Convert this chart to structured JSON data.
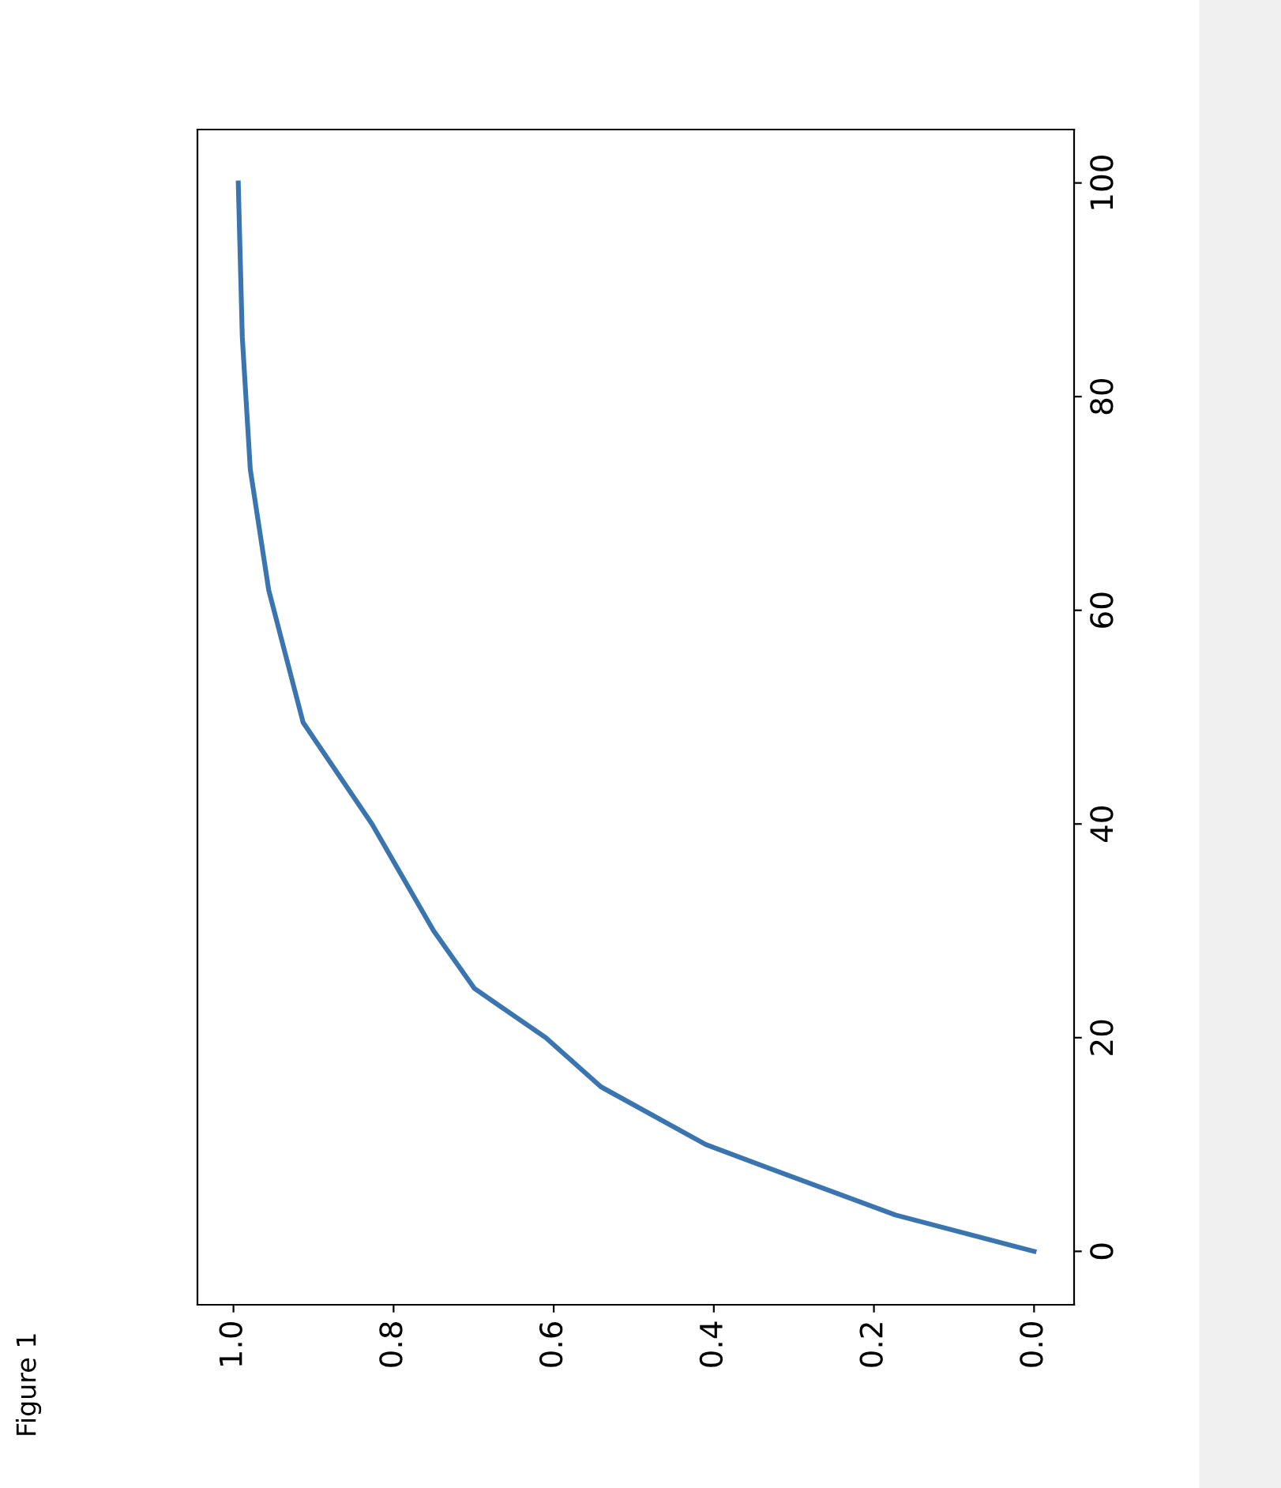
{
  "chart_data": {
    "type": "line",
    "series": [
      {
        "color": "#3a75b0",
        "x": [
          0,
          0.173,
          0.339,
          0.41,
          0.541,
          0.61,
          0.699,
          0.75,
          0.827,
          0.913,
          0.956,
          0.979,
          0.989,
          0.994
        ],
        "values": [
          0,
          3.4,
          8,
          10,
          15.4,
          20,
          24.6,
          30,
          40,
          49.5,
          61.9,
          73.2,
          85.6,
          100
        ]
      }
    ],
    "xlim": [
      1.045,
      -0.05
    ],
    "xticks": [
      {
        "value": 1.0,
        "label": "1.0"
      },
      0.8,
      0.6,
      0.4,
      0.2,
      {
        "value": 0.0,
        "label": "0.0"
      }
    ],
    "ylim": [
      -5,
      105
    ],
    "yticks": [
      0,
      20,
      40,
      60,
      80,
      100
    ],
    "grid": false,
    "legend": false,
    "marker": "none",
    "line_style": "solid",
    "annotations": [
      "Figure 1"
    ]
  }
}
